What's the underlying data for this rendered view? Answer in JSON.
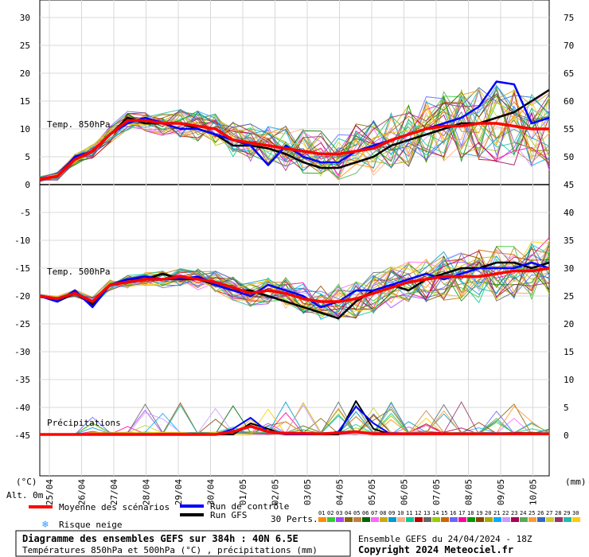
{
  "chart_data": {
    "type": "line",
    "title": "Diagramme des ensembles GEFS sur 384h : 40N 6.5E",
    "subtitle": "Températures 850hPa et 500hPa (°C) , précipitations (mm)",
    "run_info": "Ensemble GEFS du 24/04/2024 - 18Z",
    "copyright": "Copyright 2024 Meteociel.fr",
    "left_unit": "(°C)",
    "right_unit": "(mm)",
    "altitude": "Alt. 0m",
    "y_left_ticks": [
      "30",
      "25",
      "20",
      "15",
      "10",
      "5",
      "0",
      "-5",
      "-10",
      "-15",
      "-20",
      "-25",
      "-30",
      "-35",
      "-40",
      "-45"
    ],
    "y_right_ticks": [
      "75",
      "70",
      "65",
      "60",
      "55",
      "50",
      "45",
      "40",
      "35",
      "30",
      "25",
      "20",
      "15",
      "10",
      "5",
      "0"
    ],
    "x_tick_labels": [
      "25/04",
      "26/04",
      "27/04",
      "28/04",
      "29/04",
      "30/04",
      "01/05",
      "02/05",
      "03/05",
      "04/05",
      "05/05",
      "06/05",
      "07/05",
      "08/05",
      "09/05",
      "10/05"
    ],
    "panel_labels": {
      "t850": "Temp. 850hPa",
      "t500": "Temp. 500hPa",
      "precip": "Précipitations"
    },
    "legend": {
      "mean": "Moyenne des scénarios",
      "control": "Run de contrôle",
      "gfs": "Run GFS",
      "snow": "Risque neige",
      "perts": "30 Perts.",
      "pert_numbers": [
        "01",
        "02",
        "03",
        "04",
        "05",
        "06",
        "07",
        "08",
        "09",
        "10",
        "11",
        "12",
        "13",
        "14",
        "15",
        "16",
        "17",
        "18",
        "19",
        "20",
        "21",
        "22",
        "23",
        "24",
        "25",
        "26",
        "27",
        "28",
        "29",
        "30"
      ]
    },
    "colors": {
      "mean": "#ff0000",
      "control": "#0000ff",
      "gfs": "#000000",
      "perts": [
        "#ff8c00",
        "#33cc33",
        "#aa44ff",
        "#886600",
        "#c08040",
        "#006600",
        "#ff66ff",
        "#ccaa00",
        "#0099cc",
        "#ffaa88",
        "#00cc99",
        "#bb0000",
        "#666666",
        "#99cc00",
        "#cc6600",
        "#6666ff",
        "#ff0099",
        "#009900",
        "#884400",
        "#aaaa00",
        "#00aaff",
        "#cc99ff",
        "#aa0055",
        "#55aa55",
        "#ff9933",
        "#3366cc",
        "#cccc33",
        "#993366",
        "#22bbaa",
        "#ffcc00"
      ]
    },
    "series": {
      "t850_mean": [
        1,
        1.5,
        4.5,
        6,
        9,
        11.5,
        11.5,
        11,
        11,
        10.5,
        10,
        8,
        7.5,
        7,
        6.5,
        6,
        5.5,
        5.5,
        6,
        6.5,
        8,
        9,
        10,
        10.5,
        10.5,
        11,
        11,
        10.5,
        10,
        10
      ],
      "t850_control": [
        1,
        1.5,
        5,
        6,
        9,
        11,
        12,
        11,
        10,
        10,
        9,
        8,
        7,
        3.5,
        7,
        5,
        4,
        4,
        6,
        7,
        8,
        9,
        10,
        11,
        12,
        14,
        18.5,
        18,
        11,
        12
      ],
      "t850_gfs": [
        1,
        1.5,
        4.5,
        6,
        9,
        12,
        11,
        11,
        11,
        10,
        9,
        7,
        7,
        6.5,
        5.5,
        4,
        3,
        3,
        4,
        5,
        7,
        8,
        9,
        10,
        11,
        11,
        12,
        13,
        15,
        17
      ],
      "t500_mean": [
        -20,
        -20.5,
        -19.5,
        -21,
        -18,
        -17.5,
        -17,
        -17,
        -16.5,
        -17,
        -17.5,
        -18.5,
        -19.5,
        -19,
        -19.5,
        -20.5,
        -21,
        -21,
        -20.5,
        -19.5,
        -18.5,
        -17.5,
        -17,
        -16.5,
        -16.5,
        -16.5,
        -16,
        -15.5,
        -15.5,
        -15
      ],
      "t500_control": [
        -20,
        -21,
        -19,
        -22,
        -18,
        -17,
        -16.5,
        -17,
        -17,
        -16.5,
        -18,
        -19,
        -20,
        -18,
        -19,
        -20,
        -22,
        -21,
        -19,
        -19,
        -18,
        -17,
        -16,
        -17,
        -16,
        -15,
        -15,
        -15,
        -14,
        -15
      ],
      "t500_gfs": [
        -20,
        -21,
        -19.5,
        -21.5,
        -18,
        -17,
        -17,
        -16,
        -17,
        -17,
        -18,
        -19,
        -19,
        -20,
        -21,
        -22,
        -23,
        -24,
        -21,
        -19,
        -18,
        -19,
        -17,
        -16,
        -15,
        -15,
        -14,
        -14,
        -15,
        -14
      ],
      "precip_mean": [
        0,
        0,
        0,
        0,
        0,
        0,
        0,
        0,
        0,
        0,
        0,
        0.5,
        1.5,
        0.5,
        0.2,
        0.2,
        0.1,
        0.3,
        0.5,
        0.1,
        0.1,
        0.1,
        0.1,
        0.1,
        0.1,
        0.1,
        0.1,
        0.1,
        0.1,
        0.1
      ],
      "precip_control": [
        0,
        0,
        0,
        0,
        0,
        0,
        0,
        0,
        0,
        0,
        0,
        1,
        3,
        0.5,
        0,
        0,
        0,
        0.5,
        5,
        2,
        0,
        0,
        0,
        0,
        0,
        0,
        0,
        0,
        0,
        0
      ],
      "precip_gfs": [
        0,
        0,
        0,
        0,
        0,
        0,
        0,
        0,
        0,
        0,
        0,
        0,
        2,
        1,
        0,
        0,
        0,
        0,
        6,
        1,
        0,
        0,
        0,
        0,
        0,
        0,
        0,
        0,
        0,
        0
      ]
    }
  }
}
